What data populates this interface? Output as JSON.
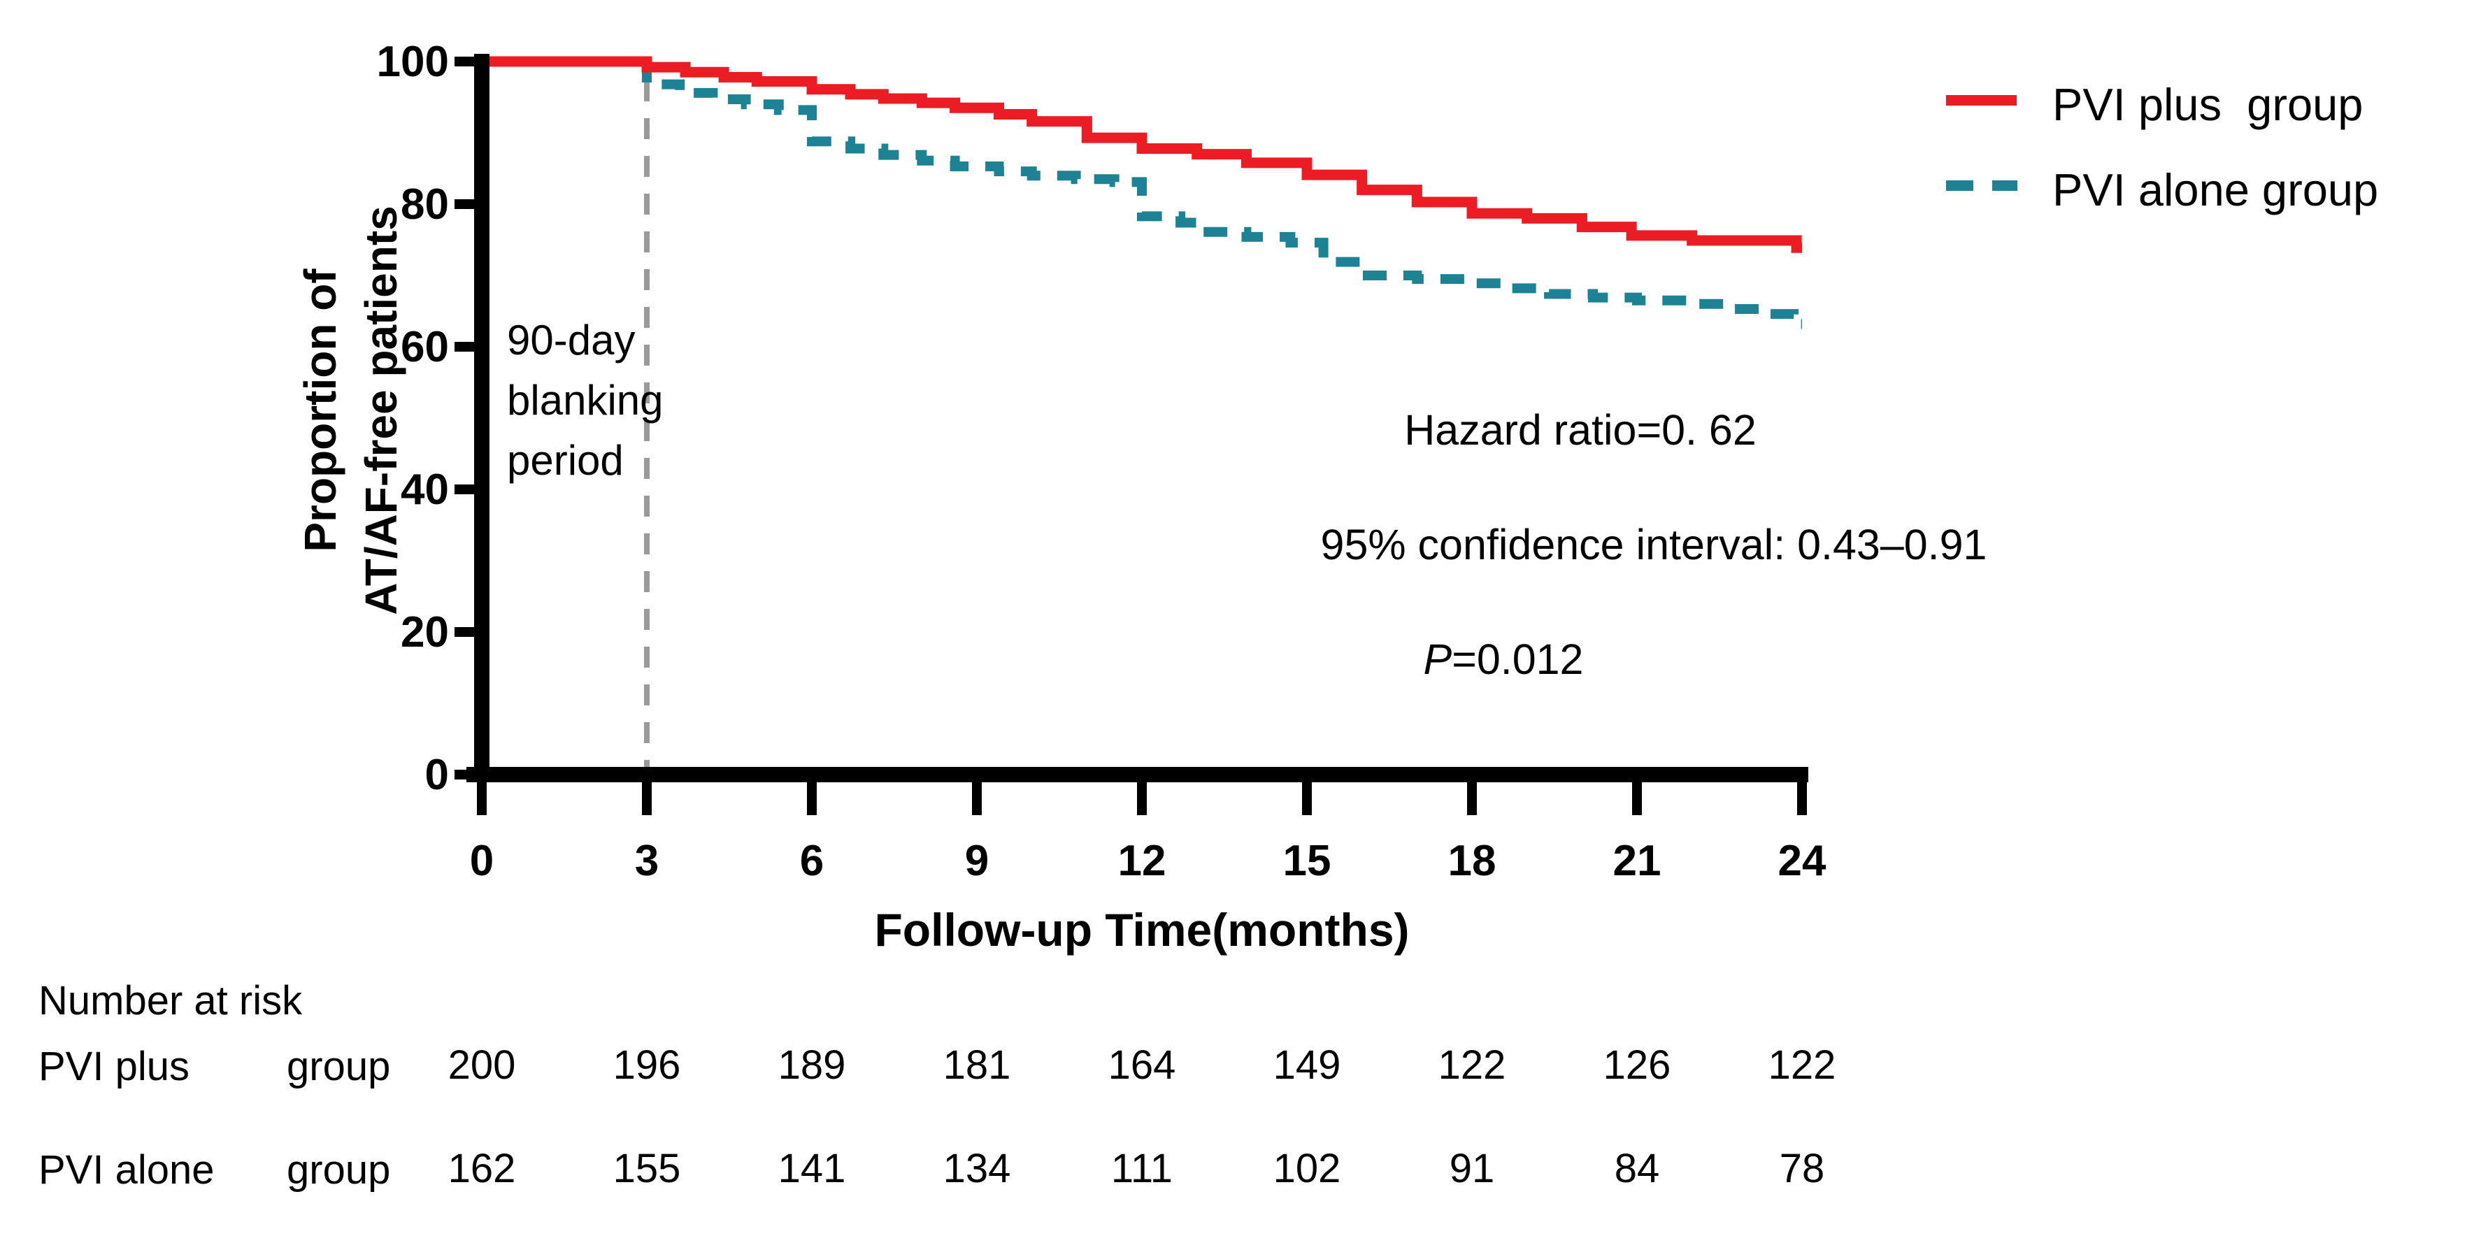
{
  "chart_data": {
    "type": "line",
    "subtype": "kaplan-meier-step",
    "xlabel": "Follow-up Time(months)",
    "ylabel_lines": [
      "Proportion of",
      "AT/AF-free patients"
    ],
    "xlim": [
      0,
      24
    ],
    "ylim": [
      0,
      100
    ],
    "xticks": [
      0,
      3,
      6,
      9,
      12,
      15,
      18,
      21,
      24
    ],
    "yticks": [
      0,
      20,
      40,
      60,
      80,
      100
    ],
    "grid": false,
    "legend_position": "top-right",
    "colors": {
      "axis": "#000000",
      "blanking_line": "#9a9a9a",
      "text": "#000000"
    },
    "series": [
      {
        "name": "PVI alone group",
        "color": "#1e8295",
        "style": "dashed",
        "points": [
          [
            0,
            100
          ],
          [
            3,
            96.8
          ],
          [
            3.6,
            95.6
          ],
          [
            4.2,
            94.7
          ],
          [
            4.8,
            94.0
          ],
          [
            5.4,
            93.2
          ],
          [
            6,
            88.8
          ],
          [
            6.7,
            87.8
          ],
          [
            7.3,
            86.9
          ],
          [
            8,
            86.1
          ],
          [
            8.6,
            85.3
          ],
          [
            9.4,
            84.6
          ],
          [
            10,
            84.0
          ],
          [
            10.8,
            83.5
          ],
          [
            11.5,
            83.1
          ],
          [
            12,
            78.3
          ],
          [
            12.7,
            77.4
          ],
          [
            13,
            76.1
          ],
          [
            13.9,
            75.4
          ],
          [
            14.7,
            74.6
          ],
          [
            15.3,
            71.9
          ],
          [
            16,
            70.0
          ],
          [
            17,
            69.5
          ],
          [
            18,
            68.9
          ],
          [
            18.6,
            68.2
          ],
          [
            19.4,
            67.4
          ],
          [
            20.2,
            66.9
          ],
          [
            21,
            66.5
          ],
          [
            21.9,
            66.0
          ],
          [
            22.6,
            65.3
          ],
          [
            23.3,
            64.6
          ],
          [
            23.85,
            63.2
          ],
          [
            24,
            63.2
          ]
        ]
      },
      {
        "name": "PVI plus  group",
        "color": "#ec1c24",
        "style": "solid",
        "points": [
          [
            0,
            100
          ],
          [
            3,
            99.2
          ],
          [
            3.7,
            98.5
          ],
          [
            4.4,
            97.8
          ],
          [
            5,
            97.2
          ],
          [
            6,
            96.1
          ],
          [
            6.7,
            95.4
          ],
          [
            7.3,
            94.8
          ],
          [
            8,
            94.2
          ],
          [
            8.6,
            93.5
          ],
          [
            9.4,
            92.6
          ],
          [
            10,
            91.6
          ],
          [
            11,
            89.3
          ],
          [
            12,
            87.8
          ],
          [
            13,
            87.0
          ],
          [
            13.9,
            85.8
          ],
          [
            15,
            84.1
          ],
          [
            16,
            82.0
          ],
          [
            17,
            80.3
          ],
          [
            18,
            78.7
          ],
          [
            19,
            78.0
          ],
          [
            20,
            76.8
          ],
          [
            20.9,
            75.6
          ],
          [
            22,
            74.9
          ],
          [
            23.9,
            73.9
          ],
          [
            24,
            73.9
          ]
        ]
      }
    ],
    "annotations": {
      "blanking_lines": [
        "90-day",
        "blanking",
        "period"
      ],
      "blanking_x": 3,
      "hazard": "Hazard ratio=0. 62",
      "ci": "95% confidence interval: 0.43–0.91",
      "p_prefix": "P",
      "p_rest": "=0.012"
    },
    "risk_table": {
      "title": "Number at risk",
      "times": [
        0,
        3,
        6,
        9,
        12,
        15,
        18,
        21,
        24
      ],
      "rows": [
        {
          "label": "PVI plus",
          "label_suffix": "group",
          "values": [
            200,
            196,
            189,
            181,
            164,
            149,
            122,
            126,
            122
          ]
        },
        {
          "label": "PVI alone",
          "label_suffix": "group",
          "values": [
            162,
            155,
            141,
            134,
            111,
            102,
            91,
            84,
            78
          ]
        }
      ]
    }
  }
}
